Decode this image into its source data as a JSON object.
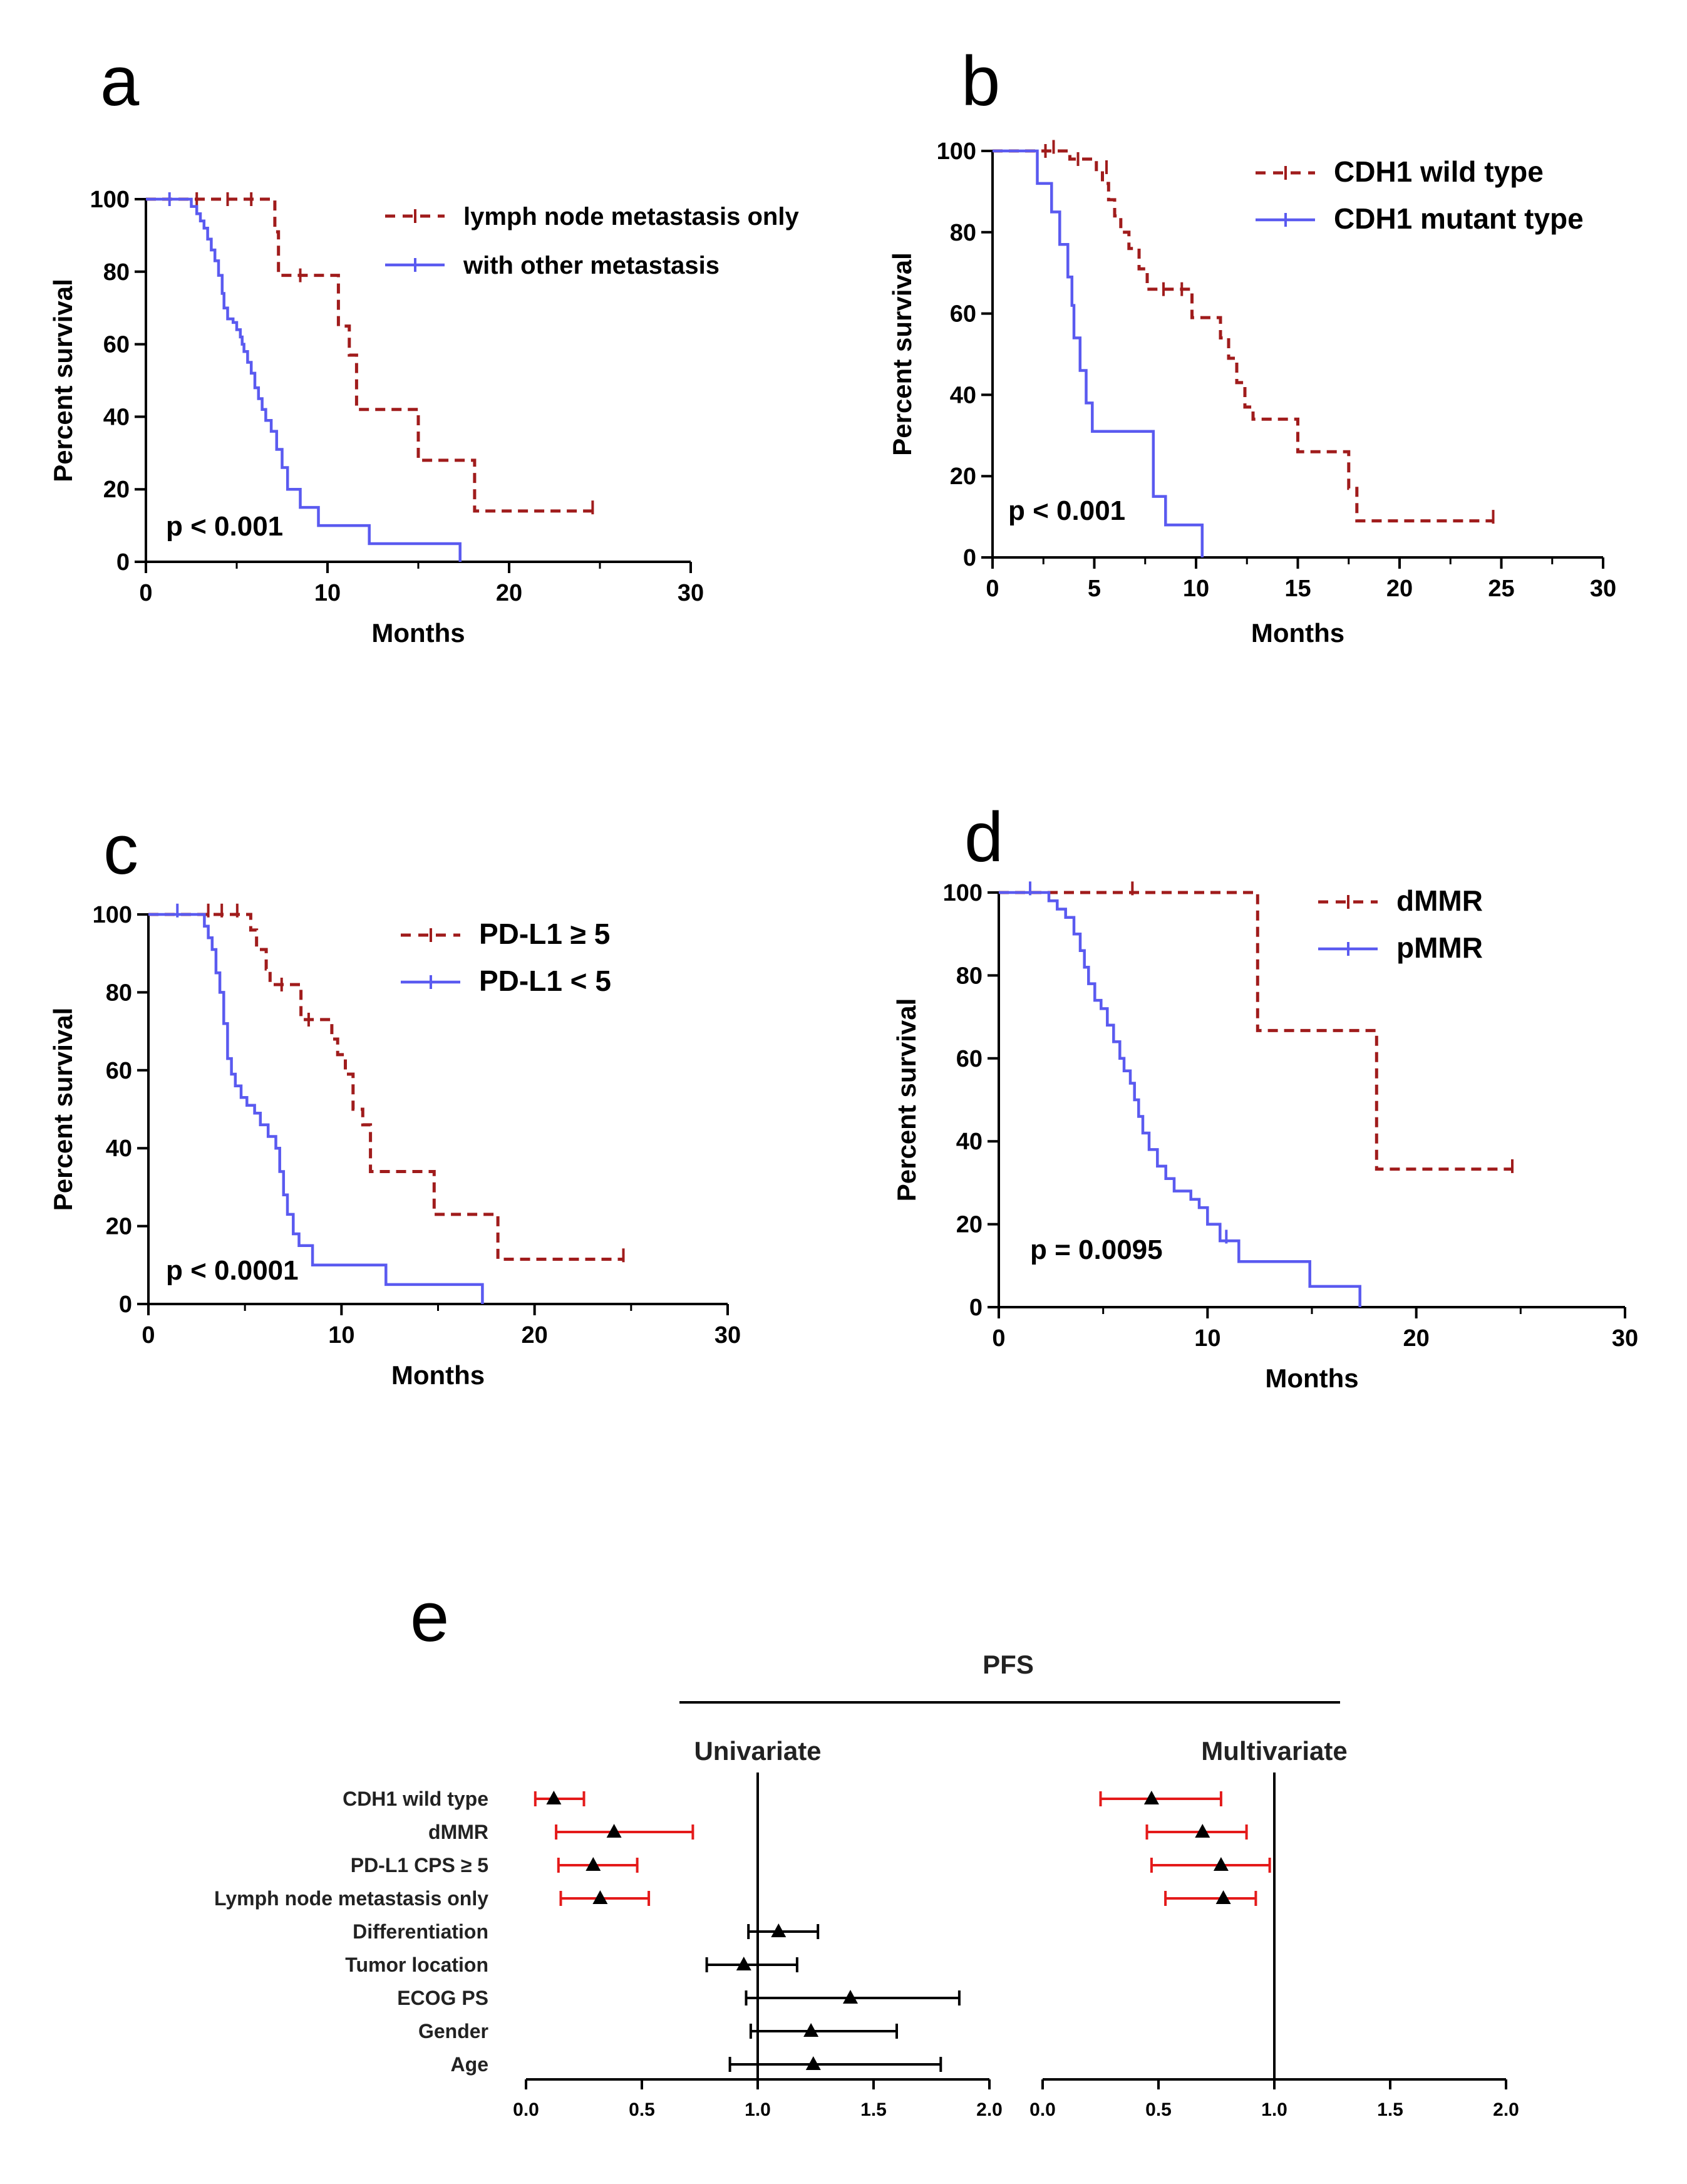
{
  "chart_data": [
    {
      "panel": "a",
      "type": "line",
      "subtype": "kaplan-meier",
      "xlabel": "Months",
      "ylabel": "Percent survival",
      "xlim": [
        0,
        30
      ],
      "ylim": [
        0,
        100
      ],
      "xticks": [
        "0",
        "10",
        "20",
        "30"
      ],
      "yticks": [
        "0",
        "20",
        "40",
        "60",
        "80",
        "100"
      ],
      "pvalue": "p < 0.001",
      "legend_position": "top-right",
      "series": [
        {
          "name": "lymph node metastasis only",
          "color": "#a01c1c",
          "dashed": true,
          "steps": [
            [
              0,
              100
            ],
            [
              6.8,
              100
            ],
            [
              7.1,
              91
            ],
            [
              7.3,
              79
            ],
            [
              10.2,
              79
            ],
            [
              10.6,
              65
            ],
            [
              11.2,
              57
            ],
            [
              11.6,
              42
            ],
            [
              14.8,
              42
            ],
            [
              15.0,
              28
            ],
            [
              17.8,
              28
            ],
            [
              18.1,
              14
            ],
            [
              24.6,
              14
            ]
          ],
          "censors": [
            [
              2.8,
              100
            ],
            [
              4.5,
              100
            ],
            [
              5.8,
              100
            ],
            [
              8.5,
              79
            ],
            [
              24.6,
              15
            ]
          ]
        },
        {
          "name": "with other metastasis",
          "color": "#5a5af0",
          "dashed": false,
          "steps": [
            [
              0,
              100
            ],
            [
              2.2,
              100
            ],
            [
              2.5,
              98
            ],
            [
              2.8,
              96
            ],
            [
              3.0,
              94
            ],
            [
              3.2,
              92
            ],
            [
              3.4,
              89
            ],
            [
              3.6,
              86
            ],
            [
              3.8,
              83
            ],
            [
              4.0,
              79
            ],
            [
              4.2,
              74
            ],
            [
              4.3,
              70
            ],
            [
              4.5,
              67
            ],
            [
              4.8,
              66
            ],
            [
              5.0,
              64
            ],
            [
              5.2,
              62
            ],
            [
              5.3,
              60
            ],
            [
              5.4,
              58
            ],
            [
              5.6,
              55
            ],
            [
              5.8,
              52
            ],
            [
              6.0,
              48
            ],
            [
              6.2,
              45
            ],
            [
              6.4,
              42
            ],
            [
              6.6,
              39
            ],
            [
              6.9,
              36
            ],
            [
              7.2,
              31
            ],
            [
              7.5,
              26
            ],
            [
              7.8,
              20
            ],
            [
              8.5,
              15
            ],
            [
              9.5,
              10
            ],
            [
              12.2,
              10
            ],
            [
              12.3,
              5
            ],
            [
              17.3,
              5
            ],
            [
              17.3,
              0
            ]
          ],
          "censors": [
            [
              1.3,
              100
            ]
          ]
        }
      ]
    },
    {
      "panel": "b",
      "type": "line",
      "subtype": "kaplan-meier",
      "xlabel": "Months",
      "ylabel": "Percent survival",
      "xlim": [
        0,
        30
      ],
      "ylim": [
        0,
        100
      ],
      "xticks": [
        "0",
        "5",
        "10",
        "15",
        "20",
        "25",
        "30"
      ],
      "yticks": [
        "0",
        "20",
        "40",
        "60",
        "80",
        "100"
      ],
      "pvalue": "p < 0.001",
      "legend_position": "top-right",
      "series": [
        {
          "name": "CDH1 wild type",
          "color": "#a01c1c",
          "dashed": true,
          "steps": [
            [
              0,
              100
            ],
            [
              3.5,
              100
            ],
            [
              3.8,
              98
            ],
            [
              4.8,
              98
            ],
            [
              5.1,
              95
            ],
            [
              5.4,
              92
            ],
            [
              5.7,
              88
            ],
            [
              6.0,
              84
            ],
            [
              6.3,
              80
            ],
            [
              6.7,
              76
            ],
            [
              7.2,
              71
            ],
            [
              7.6,
              66
            ],
            [
              9.5,
              66
            ],
            [
              9.8,
              59
            ],
            [
              11.0,
              59
            ],
            [
              11.2,
              54
            ],
            [
              11.6,
              49
            ],
            [
              12.0,
              43
            ],
            [
              12.4,
              37
            ],
            [
              12.8,
              34
            ],
            [
              14.8,
              34
            ],
            [
              15.0,
              26
            ],
            [
              17.2,
              26
            ],
            [
              17.5,
              17
            ],
            [
              17.9,
              9
            ],
            [
              24.6,
              9
            ]
          ],
          "censors": [
            [
              2.6,
              100
            ],
            [
              3.0,
              101
            ],
            [
              4.2,
              98
            ],
            [
              5.6,
              96
            ],
            [
              8.4,
              66
            ],
            [
              9.3,
              66
            ],
            [
              24.6,
              10
            ]
          ]
        },
        {
          "name": "CDH1 mutant type",
          "color": "#5a5af0",
          "dashed": false,
          "steps": [
            [
              0,
              100
            ],
            [
              2.2,
              100
            ],
            [
              2.2,
              92
            ],
            [
              2.9,
              85
            ],
            [
              3.3,
              77
            ],
            [
              3.7,
              69
            ],
            [
              3.9,
              62
            ],
            [
              4.0,
              54
            ],
            [
              4.3,
              46
            ],
            [
              4.6,
              38
            ],
            [
              4.9,
              31
            ],
            [
              7.6,
              31
            ],
            [
              7.9,
              15
            ],
            [
              8.5,
              8
            ],
            [
              10.2,
              8
            ],
            [
              10.3,
              0
            ]
          ],
          "censors": []
        }
      ]
    },
    {
      "panel": "c",
      "type": "line",
      "subtype": "kaplan-meier",
      "xlabel": "Months",
      "ylabel": "Percent survival",
      "xlim": [
        0,
        30
      ],
      "ylim": [
        0,
        100
      ],
      "xticks": [
        "0",
        "10",
        "20",
        "30"
      ],
      "yticks": [
        "0",
        "20",
        "40",
        "60",
        "80",
        "100"
      ],
      "pvalue": "p < 0.0001",
      "legend_position": "top-right",
      "series": [
        {
          "name": "PD-L1 ≥ 5",
          "color": "#a01c1c",
          "dashed": true,
          "steps": [
            [
              0,
              100
            ],
            [
              5.0,
              100
            ],
            [
              5.3,
              96
            ],
            [
              5.6,
              91
            ],
            [
              6.1,
              86
            ],
            [
              6.3,
              82
            ],
            [
              7.7,
              82
            ],
            [
              7.9,
              73
            ],
            [
              9.3,
              73
            ],
            [
              9.5,
              68
            ],
            [
              9.8,
              64
            ],
            [
              10.2,
              59
            ],
            [
              10.6,
              50
            ],
            [
              11.1,
              46
            ],
            [
              11.5,
              34
            ],
            [
              14.6,
              34
            ],
            [
              14.8,
              23
            ],
            [
              17.8,
              23
            ],
            [
              18.1,
              11.5
            ],
            [
              24.6,
              11.5
            ]
          ],
          "censors": [
            [
              3.1,
              101
            ],
            [
              3.8,
              101
            ],
            [
              4.6,
              101
            ],
            [
              6.9,
              82
            ],
            [
              8.3,
              73
            ],
            [
              24.6,
              12.5
            ]
          ]
        },
        {
          "name": "PD-L1 < 5",
          "color": "#5a5af0",
          "dashed": false,
          "steps": [
            [
              0,
              100
            ],
            [
              2.7,
              100
            ],
            [
              2.9,
              97
            ],
            [
              3.1,
              94
            ],
            [
              3.3,
              91
            ],
            [
              3.5,
              85
            ],
            [
              3.7,
              80
            ],
            [
              3.9,
              72
            ],
            [
              4.1,
              63
            ],
            [
              4.3,
              59
            ],
            [
              4.5,
              56
            ],
            [
              4.8,
              53
            ],
            [
              5.1,
              51
            ],
            [
              5.5,
              49
            ],
            [
              5.8,
              46
            ],
            [
              6.2,
              43
            ],
            [
              6.6,
              40
            ],
            [
              6.8,
              34
            ],
            [
              7.0,
              28
            ],
            [
              7.2,
              23
            ],
            [
              7.5,
              18
            ],
            [
              7.8,
              15
            ],
            [
              8.5,
              10
            ],
            [
              12.2,
              10
            ],
            [
              12.3,
              5
            ],
            [
              17.3,
              5
            ],
            [
              17.3,
              0
            ]
          ],
          "censors": [
            [
              1.5,
              101
            ]
          ]
        }
      ]
    },
    {
      "panel": "d",
      "type": "line",
      "subtype": "kaplan-meier",
      "xlabel": "Months",
      "ylabel": "Percent survival",
      "xlim": [
        0,
        30
      ],
      "ylim": [
        0,
        100
      ],
      "xticks": [
        "0",
        "10",
        "20",
        "30"
      ],
      "yticks": [
        "0",
        "20",
        "40",
        "60",
        "80",
        "100"
      ],
      "pvalue": "p = 0.0095",
      "legend_position": "top-right",
      "series": [
        {
          "name": "dMMR",
          "color": "#a01c1c",
          "dashed": true,
          "steps": [
            [
              0,
              100
            ],
            [
              12.2,
              100
            ],
            [
              12.4,
              66.7
            ],
            [
              17.8,
              66.7
            ],
            [
              18.1,
              33.3
            ],
            [
              24.6,
              33.3
            ]
          ],
          "censors": [
            [
              6.4,
              101
            ],
            [
              24.6,
              34
            ]
          ]
        },
        {
          "name": "pMMR",
          "color": "#5a5af0",
          "dashed": false,
          "steps": [
            [
              0,
              100
            ],
            [
              2.0,
              100
            ],
            [
              2.4,
              98
            ],
            [
              2.8,
              96
            ],
            [
              3.2,
              94
            ],
            [
              3.6,
              90
            ],
            [
              3.9,
              86
            ],
            [
              4.1,
              82
            ],
            [
              4.3,
              78
            ],
            [
              4.6,
              74
            ],
            [
              4.9,
              72
            ],
            [
              5.2,
              68
            ],
            [
              5.5,
              64
            ],
            [
              5.8,
              60
            ],
            [
              6.0,
              57
            ],
            [
              6.3,
              54
            ],
            [
              6.5,
              50
            ],
            [
              6.7,
              46
            ],
            [
              6.9,
              42
            ],
            [
              7.2,
              38
            ],
            [
              7.6,
              34
            ],
            [
              8.0,
              31
            ],
            [
              8.4,
              28
            ],
            [
              9.2,
              26
            ],
            [
              9.6,
              24
            ],
            [
              10.0,
              20
            ],
            [
              10.6,
              16
            ],
            [
              11.5,
              11
            ],
            [
              14.8,
              11
            ],
            [
              14.9,
              5
            ],
            [
              17.3,
              5
            ],
            [
              17.3,
              0
            ]
          ],
          "censors": [
            [
              1.5,
              101
            ],
            [
              10.9,
              17
            ]
          ]
        }
      ]
    },
    {
      "panel": "e",
      "type": "forest",
      "title": "PFS",
      "xlim": [
        0,
        2
      ],
      "xticks": [
        "0.0",
        "0.5",
        "1.0",
        "1.5",
        "2.0"
      ],
      "reference_line": 1.0,
      "significant_color": "#e41a1a",
      "nonsignificant_color": "#000000",
      "variables": [
        "CDH1 wild type",
        "dMMR",
        "PD-L1 CPS ≥ 5",
        "Lymph node metastasis only",
        "Differentiation",
        "Tumor location",
        "ECOG PS",
        "Gender",
        "Age"
      ],
      "univariate": {
        "label": "Univariate",
        "rows": [
          {
            "hr": 0.12,
            "low": 0.04,
            "high": 0.25,
            "significant": true
          },
          {
            "hr": 0.38,
            "low": 0.13,
            "high": 0.72,
            "significant": true
          },
          {
            "hr": 0.29,
            "low": 0.14,
            "high": 0.48,
            "significant": true
          },
          {
            "hr": 0.32,
            "low": 0.15,
            "high": 0.53,
            "significant": true
          },
          {
            "hr": 1.09,
            "low": 0.96,
            "high": 1.26,
            "significant": false
          },
          {
            "hr": 0.94,
            "low": 0.78,
            "high": 1.17,
            "significant": false
          },
          {
            "hr": 1.4,
            "low": 0.95,
            "high": 1.87,
            "significant": false
          },
          {
            "hr": 1.23,
            "low": 0.97,
            "high": 1.6,
            "significant": false
          },
          {
            "hr": 1.24,
            "low": 0.88,
            "high": 1.79,
            "significant": false
          }
        ]
      },
      "multivariate": {
        "label": "Multivariate",
        "rows": [
          {
            "hr": 0.47,
            "low": 0.25,
            "high": 0.77,
            "significant": true
          },
          {
            "hr": 0.69,
            "low": 0.45,
            "high": 0.88,
            "significant": true
          },
          {
            "hr": 0.77,
            "low": 0.47,
            "high": 0.98,
            "significant": true
          },
          {
            "hr": 0.78,
            "low": 0.53,
            "high": 0.92,
            "significant": true
          }
        ]
      }
    }
  ]
}
